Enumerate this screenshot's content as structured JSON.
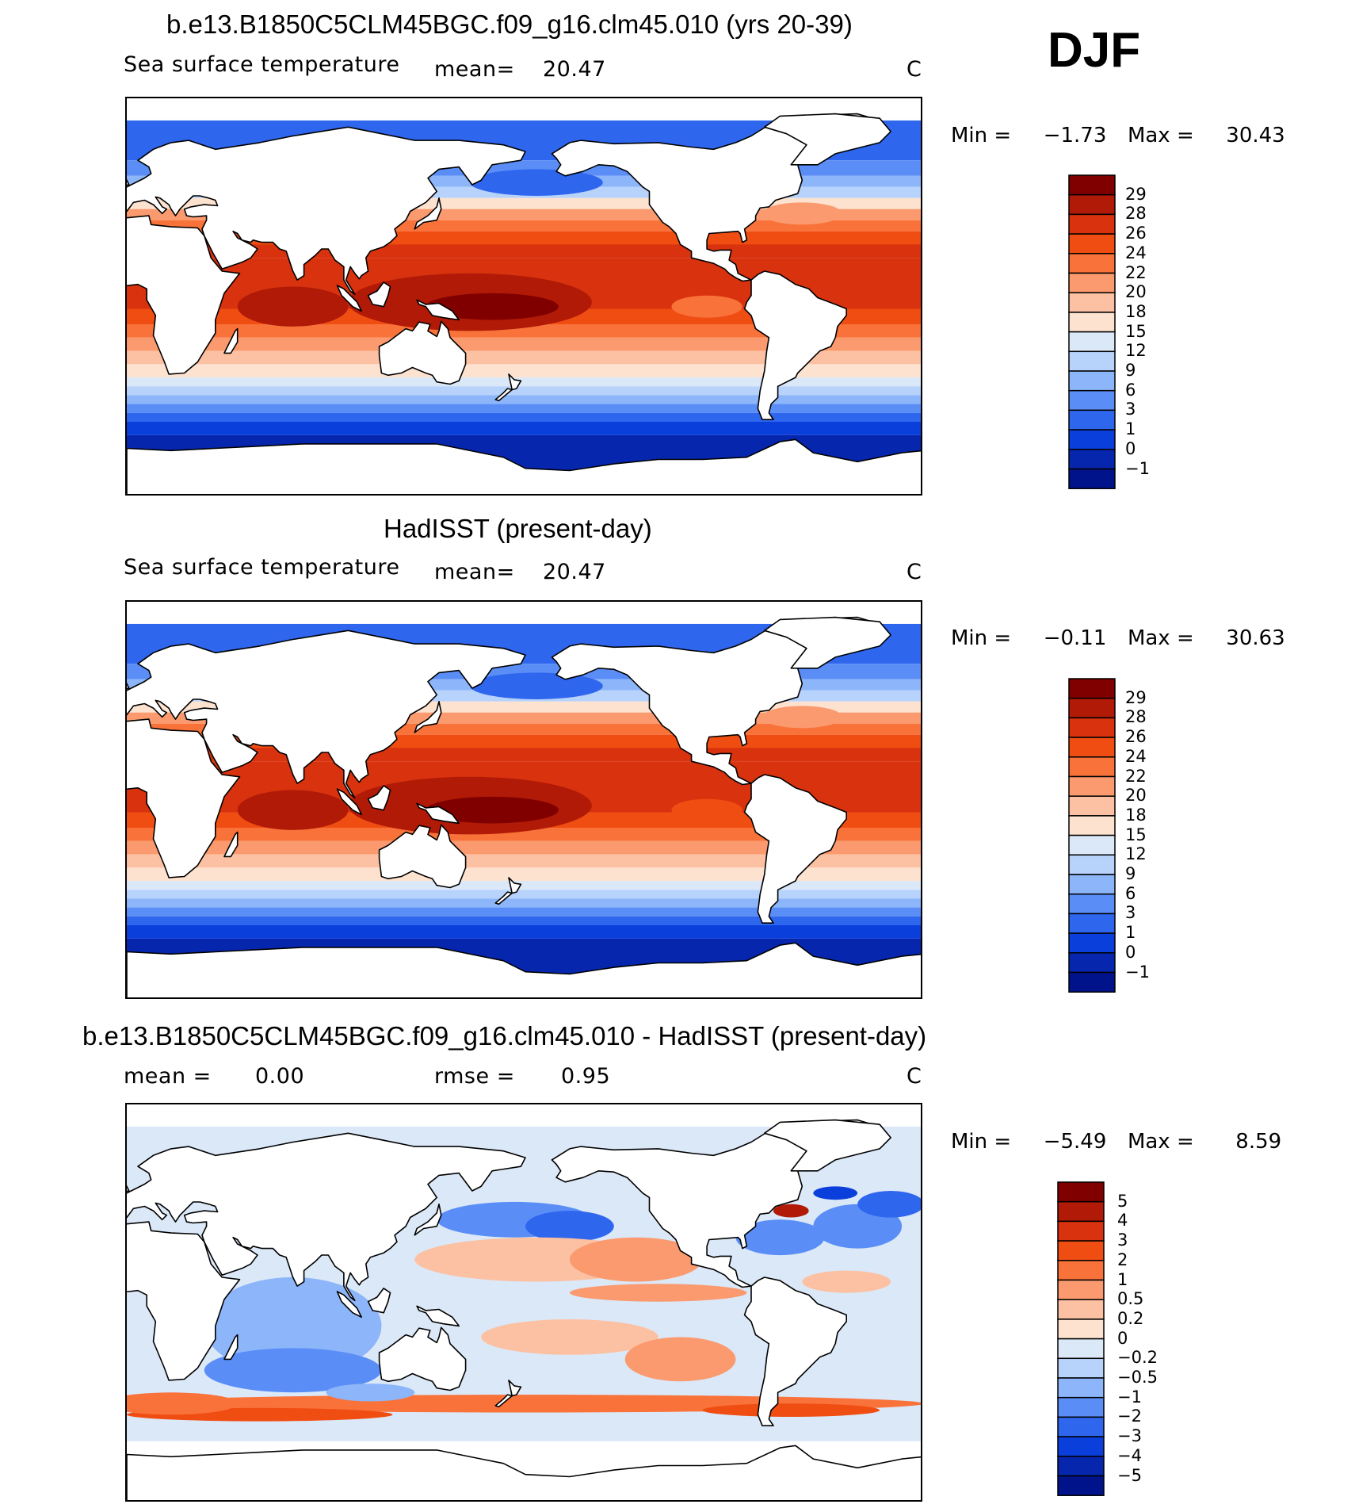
{
  "season": "DJF",
  "panels": [
    {
      "title": "b.e13.B1850C5CLM45BGC.f09_g16.clm45.010 (yrs 20-39)",
      "variable": "Sea surface temperature",
      "stat1_label": "mean=",
      "stat1_value": "20.47",
      "stat2_label": "",
      "stat2_value": "",
      "units": "C",
      "min_label": "Min  =",
      "min_value": "−1.73",
      "max_label": "Max  =",
      "max_value": "30.43",
      "colorbar_labels": [
        "29",
        "28",
        "26",
        "24",
        "22",
        "20",
        "18",
        "15",
        "12",
        "9",
        "6",
        "3",
        "1",
        "0",
        "−1"
      ],
      "colorbar_colors": [
        "#800000",
        "#b01a07",
        "#d8320e",
        "#f04d12",
        "#f9723a",
        "#fa9a6e",
        "#fcc1a2",
        "#fde2cf",
        "#dbe8f8",
        "#b8d3fb",
        "#8cb5fa",
        "#5a8ef6",
        "#2f66ee",
        "#0a3fdc",
        "#0626ae",
        "#00138a"
      ]
    },
    {
      "title": "HadISST (present-day)",
      "variable": "Sea surface temperature",
      "stat1_label": "mean=",
      "stat1_value": "20.47",
      "stat2_label": "",
      "stat2_value": "",
      "units": "C",
      "min_label": "Min  =",
      "min_value": "−0.11",
      "max_label": "Max  =",
      "max_value": "30.63",
      "colorbar_labels": [
        "29",
        "28",
        "26",
        "24",
        "22",
        "20",
        "18",
        "15",
        "12",
        "9",
        "6",
        "3",
        "1",
        "0",
        "−1"
      ],
      "colorbar_colors": [
        "#800000",
        "#b01a07",
        "#d8320e",
        "#f04d12",
        "#f9723a",
        "#fa9a6e",
        "#fcc1a2",
        "#fde2cf",
        "#dbe8f8",
        "#b8d3fb",
        "#8cb5fa",
        "#5a8ef6",
        "#2f66ee",
        "#0a3fdc",
        "#0626ae",
        "#00138a"
      ]
    },
    {
      "title": "b.e13.B1850C5CLM45BGC.f09_g16.clm45.010 - HadISST (present-day)",
      "variable": "",
      "stat1_label": "mean  =",
      "stat1_value": "0.00",
      "stat2_label": "rmse  =",
      "stat2_value": "0.95",
      "units": "C",
      "min_label": "Min  =",
      "min_value": "−5.49",
      "max_label": "Max  =",
      "max_value": "8.59",
      "colorbar_labels": [
        "5",
        "4",
        "3",
        "2",
        "1",
        "0.5",
        "0.2",
        "0",
        "−0.2",
        "−0.5",
        "−1",
        "−2",
        "−3",
        "−4",
        "−5"
      ],
      "colorbar_colors": [
        "#800000",
        "#b01a07",
        "#d8320e",
        "#f04d12",
        "#f9723a",
        "#fa9a6e",
        "#fcc1a2",
        "#fde2cf",
        "#dbe8f8",
        "#b8d3fb",
        "#8cb5fa",
        "#5a8ef6",
        "#2f66ee",
        "#0a3fdc",
        "#0626ae",
        "#00138a"
      ]
    }
  ],
  "chart_data": [
    {
      "type": "heatmap",
      "title": "b.e13.B1850C5CLM45BGC.f09_g16.clm45.010 (yrs 20-39)",
      "variable": "Sea surface temperature",
      "units": "C",
      "mean": 20.47,
      "min": -1.73,
      "max": 30.43,
      "levels": [
        -1,
        0,
        1,
        3,
        6,
        9,
        12,
        15,
        18,
        20,
        22,
        24,
        26,
        28,
        29
      ]
    },
    {
      "type": "heatmap",
      "title": "HadISST (present-day)",
      "variable": "Sea surface temperature",
      "units": "C",
      "mean": 20.47,
      "min": -0.11,
      "max": 30.63,
      "levels": [
        -1,
        0,
        1,
        3,
        6,
        9,
        12,
        15,
        18,
        20,
        22,
        24,
        26,
        28,
        29
      ]
    },
    {
      "type": "heatmap",
      "title": "b.e13.B1850C5CLM45BGC.f09_g16.clm45.010 - HadISST (present-day)",
      "units": "C",
      "mean": 0.0,
      "rmse": 0.95,
      "min": -5.49,
      "max": 8.59,
      "levels": [
        -5,
        -4,
        -3,
        -2,
        -1,
        -0.5,
        -0.2,
        0,
        0.2,
        0.5,
        1,
        2,
        3,
        4,
        5
      ]
    }
  ]
}
